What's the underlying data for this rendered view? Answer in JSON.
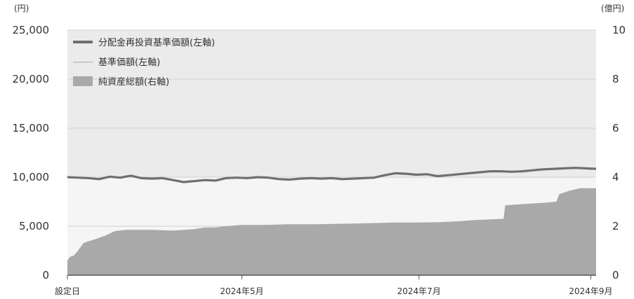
{
  "chart_data": {
    "type": "line",
    "y_left_unit": "(円)",
    "y_right_unit": "(億円)",
    "y_left_ticks": [
      "25,000",
      "20,000",
      "15,000",
      "10,000",
      "5,000",
      "0"
    ],
    "y_right_ticks": [
      "10",
      "8",
      "6",
      "4",
      "2",
      "0"
    ],
    "ylim_left": [
      0,
      25000
    ],
    "ylim_right": [
      0,
      10
    ],
    "x_ticks": [
      "設定日",
      "2024年5月",
      "2024年7月",
      "2024年9月"
    ],
    "grid": true,
    "legend_position": "top-left",
    "series": [
      {
        "name": "分配金再投資基準価額(左軸)",
        "axis": "left",
        "style": "thick-line",
        "color": "#6f6f6f",
        "x": [
          0.0,
          0.02,
          0.04,
          0.06,
          0.08,
          0.1,
          0.12,
          0.14,
          0.16,
          0.18,
          0.2,
          0.22,
          0.24,
          0.26,
          0.28,
          0.3,
          0.32,
          0.34,
          0.36,
          0.38,
          0.4,
          0.42,
          0.44,
          0.46,
          0.48,
          0.5,
          0.52,
          0.54,
          0.56,
          0.58,
          0.6,
          0.62,
          0.64,
          0.66,
          0.68,
          0.7,
          0.72,
          0.74,
          0.76,
          0.78,
          0.8,
          0.82,
          0.84,
          0.86,
          0.88,
          0.9,
          0.92,
          0.94,
          0.96,
          0.98,
          1.0
        ],
        "values": [
          10000,
          9950,
          9900,
          9800,
          10050,
          9950,
          10150,
          9900,
          9850,
          9900,
          9700,
          9500,
          9600,
          9700,
          9650,
          9900,
          9950,
          9900,
          10000,
          9950,
          9800,
          9750,
          9850,
          9900,
          9850,
          9900,
          9800,
          9850,
          9900,
          9950,
          10200,
          10400,
          10350,
          10250,
          10300,
          10100,
          10200,
          10300,
          10400,
          10500,
          10600,
          10600,
          10550,
          10600,
          10700,
          10800,
          10850,
          10900,
          10950,
          10900,
          10850
        ]
      },
      {
        "name": "基準価額(左軸)",
        "axis": "left",
        "style": "thin-line",
        "color": "#bdbdbd",
        "x": [
          0.0,
          0.02,
          0.04,
          0.06,
          0.08,
          0.1,
          0.12,
          0.14,
          0.16,
          0.18,
          0.2,
          0.22,
          0.24,
          0.26,
          0.28,
          0.3,
          0.32,
          0.34,
          0.36,
          0.38,
          0.4,
          0.42,
          0.44,
          0.46,
          0.48,
          0.5,
          0.52,
          0.54,
          0.56,
          0.58,
          0.6,
          0.62,
          0.64,
          0.66,
          0.68,
          0.7,
          0.72,
          0.74,
          0.76,
          0.78,
          0.8,
          0.82,
          0.84,
          0.86,
          0.88,
          0.9,
          0.92,
          0.94,
          0.96,
          0.98,
          1.0
        ],
        "values": [
          10000,
          9950,
          9900,
          9800,
          10050,
          9950,
          10150,
          9900,
          9850,
          9900,
          9700,
          9500,
          9600,
          9700,
          9650,
          9900,
          9950,
          9900,
          10000,
          9950,
          9800,
          9750,
          9850,
          9900,
          9850,
          9900,
          9800,
          9850,
          9900,
          9950,
          10200,
          10400,
          10350,
          10250,
          10300,
          10100,
          10200,
          10300,
          10400,
          10500,
          10600,
          10600,
          10550,
          10600,
          10700,
          10800,
          10850,
          10900,
          10950,
          10900,
          10850
        ]
      },
      {
        "name": "純資産総額(右軸)",
        "axis": "right",
        "style": "area",
        "color": "#a9a9a9",
        "x": [
          0.0,
          0.005,
          0.012,
          0.02,
          0.03,
          0.035,
          0.05,
          0.07,
          0.09,
          0.11,
          0.13,
          0.16,
          0.2,
          0.24,
          0.26,
          0.28,
          0.3,
          0.33,
          0.37,
          0.42,
          0.47,
          0.52,
          0.57,
          0.62,
          0.66,
          0.7,
          0.74,
          0.77,
          0.825,
          0.828,
          0.86,
          0.9,
          0.925,
          0.93,
          0.95,
          0.97,
          1.0
        ],
        "values": [
          0.6,
          0.75,
          0.8,
          1.0,
          1.3,
          1.35,
          1.45,
          1.6,
          1.8,
          1.85,
          1.85,
          1.85,
          1.82,
          1.88,
          1.95,
          1.95,
          2.0,
          2.05,
          2.05,
          2.08,
          2.08,
          2.1,
          2.12,
          2.15,
          2.15,
          2.16,
          2.2,
          2.25,
          2.3,
          2.85,
          2.9,
          2.95,
          3.0,
          3.3,
          3.45,
          3.55,
          3.55
        ]
      }
    ]
  }
}
